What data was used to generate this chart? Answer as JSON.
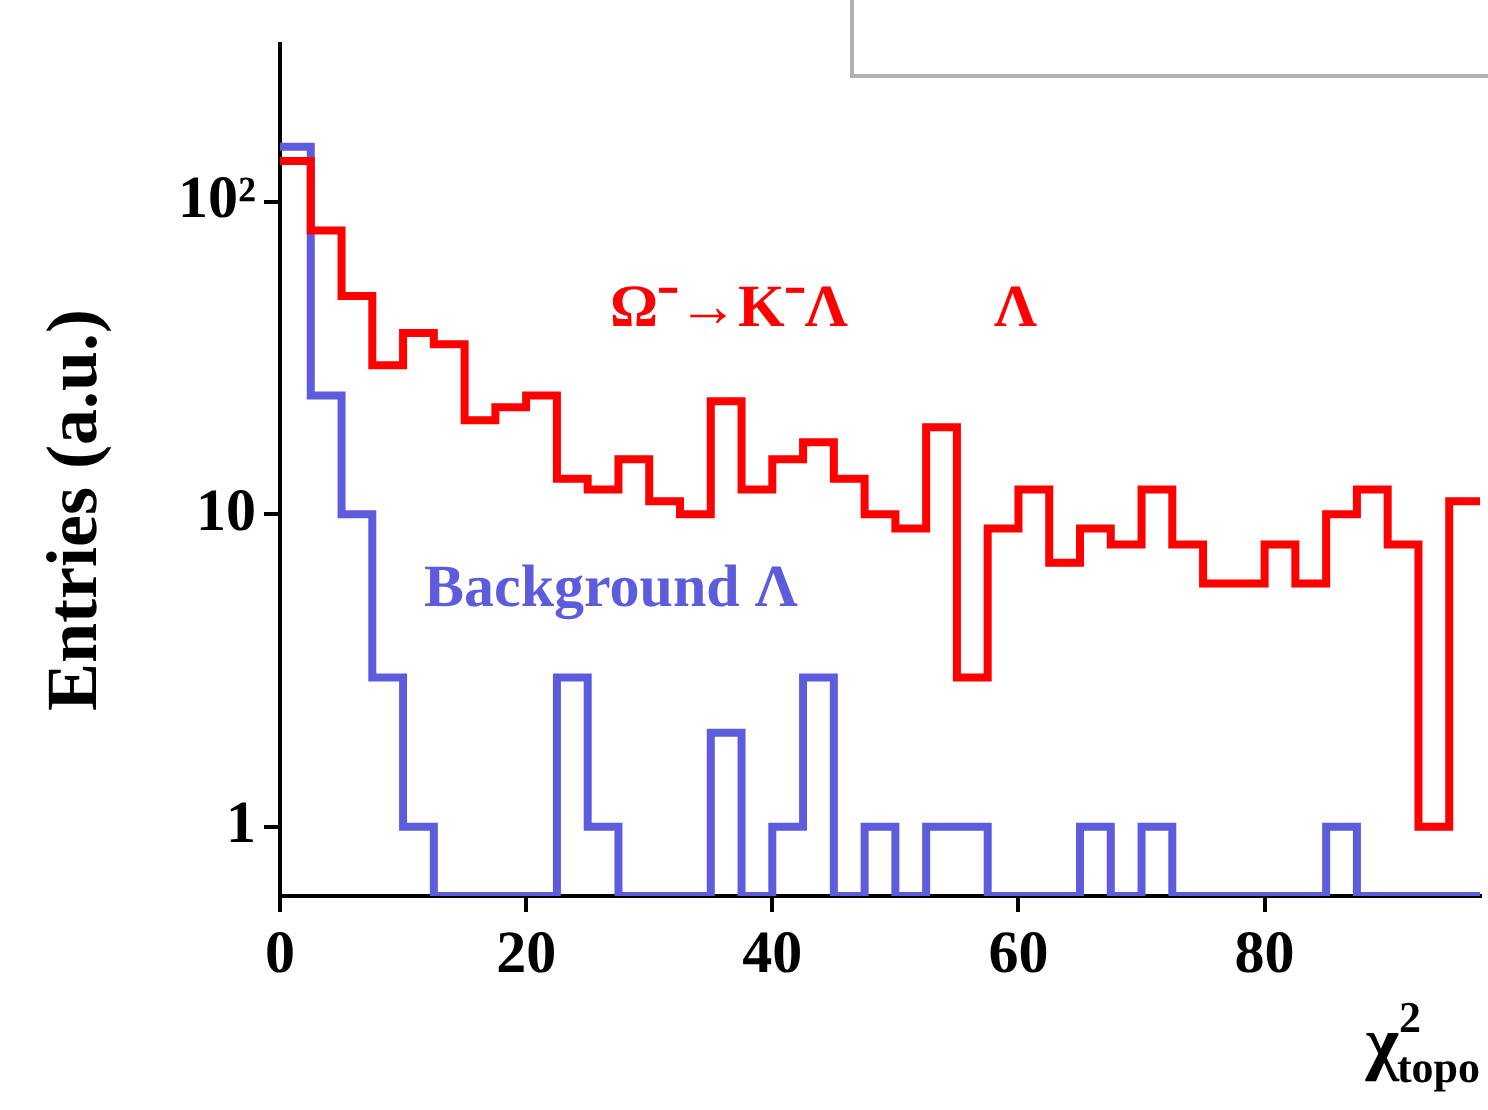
{
  "chart_data": {
    "type": "histogram",
    "bins": [
      0,
      2.5,
      5,
      7.5,
      10,
      12.5,
      15,
      17.5,
      20,
      22.5,
      25,
      27.5,
      30,
      32.5,
      35,
      37.5,
      40,
      42.5,
      45,
      47.5,
      50,
      52.5,
      55,
      57.5,
      60,
      62.5,
      65,
      67.5,
      70,
      72.5,
      75,
      77.5,
      80,
      82.5,
      85,
      87.5,
      90,
      92.5,
      95,
      97.5
    ],
    "series": [
      {
        "name": "Ω⁻→K⁻Λ",
        "color": "#ff0000",
        "values": [
          135,
          81,
          50,
          30,
          38,
          35,
          20,
          22,
          24,
          13,
          12,
          15,
          11,
          10,
          23,
          12,
          15,
          17,
          13,
          10,
          9,
          19,
          3,
          9,
          12,
          7,
          9,
          8,
          12,
          8,
          6,
          6,
          8,
          6,
          10,
          12,
          8,
          1,
          11
        ]
      },
      {
        "name": "Background Λ",
        "color": "#5c5cdc",
        "values": [
          150,
          24,
          10,
          3,
          1,
          null,
          null,
          null,
          null,
          3,
          1,
          null,
          null,
          null,
          2,
          null,
          1,
          3,
          null,
          1,
          null,
          1,
          1,
          null,
          null,
          null,
          1,
          null,
          1,
          null,
          null,
          null,
          null,
          null,
          1,
          null,
          null,
          null,
          null
        ]
      }
    ],
    "annotations": [
      "Λ"
    ],
    "xlabel": "χ$^{2}$$_{topo}$",
    "ylabel": "Entries (a.u.)",
    "xlim": [
      0,
      97.5
    ],
    "xticks": [
      0,
      20,
      40,
      60,
      80
    ],
    "ylim": [
      0.6,
      320
    ],
    "yticks": [
      1,
      10,
      {
        "value": 100,
        "label": "10²"
      }
    ],
    "log": "y"
  }
}
